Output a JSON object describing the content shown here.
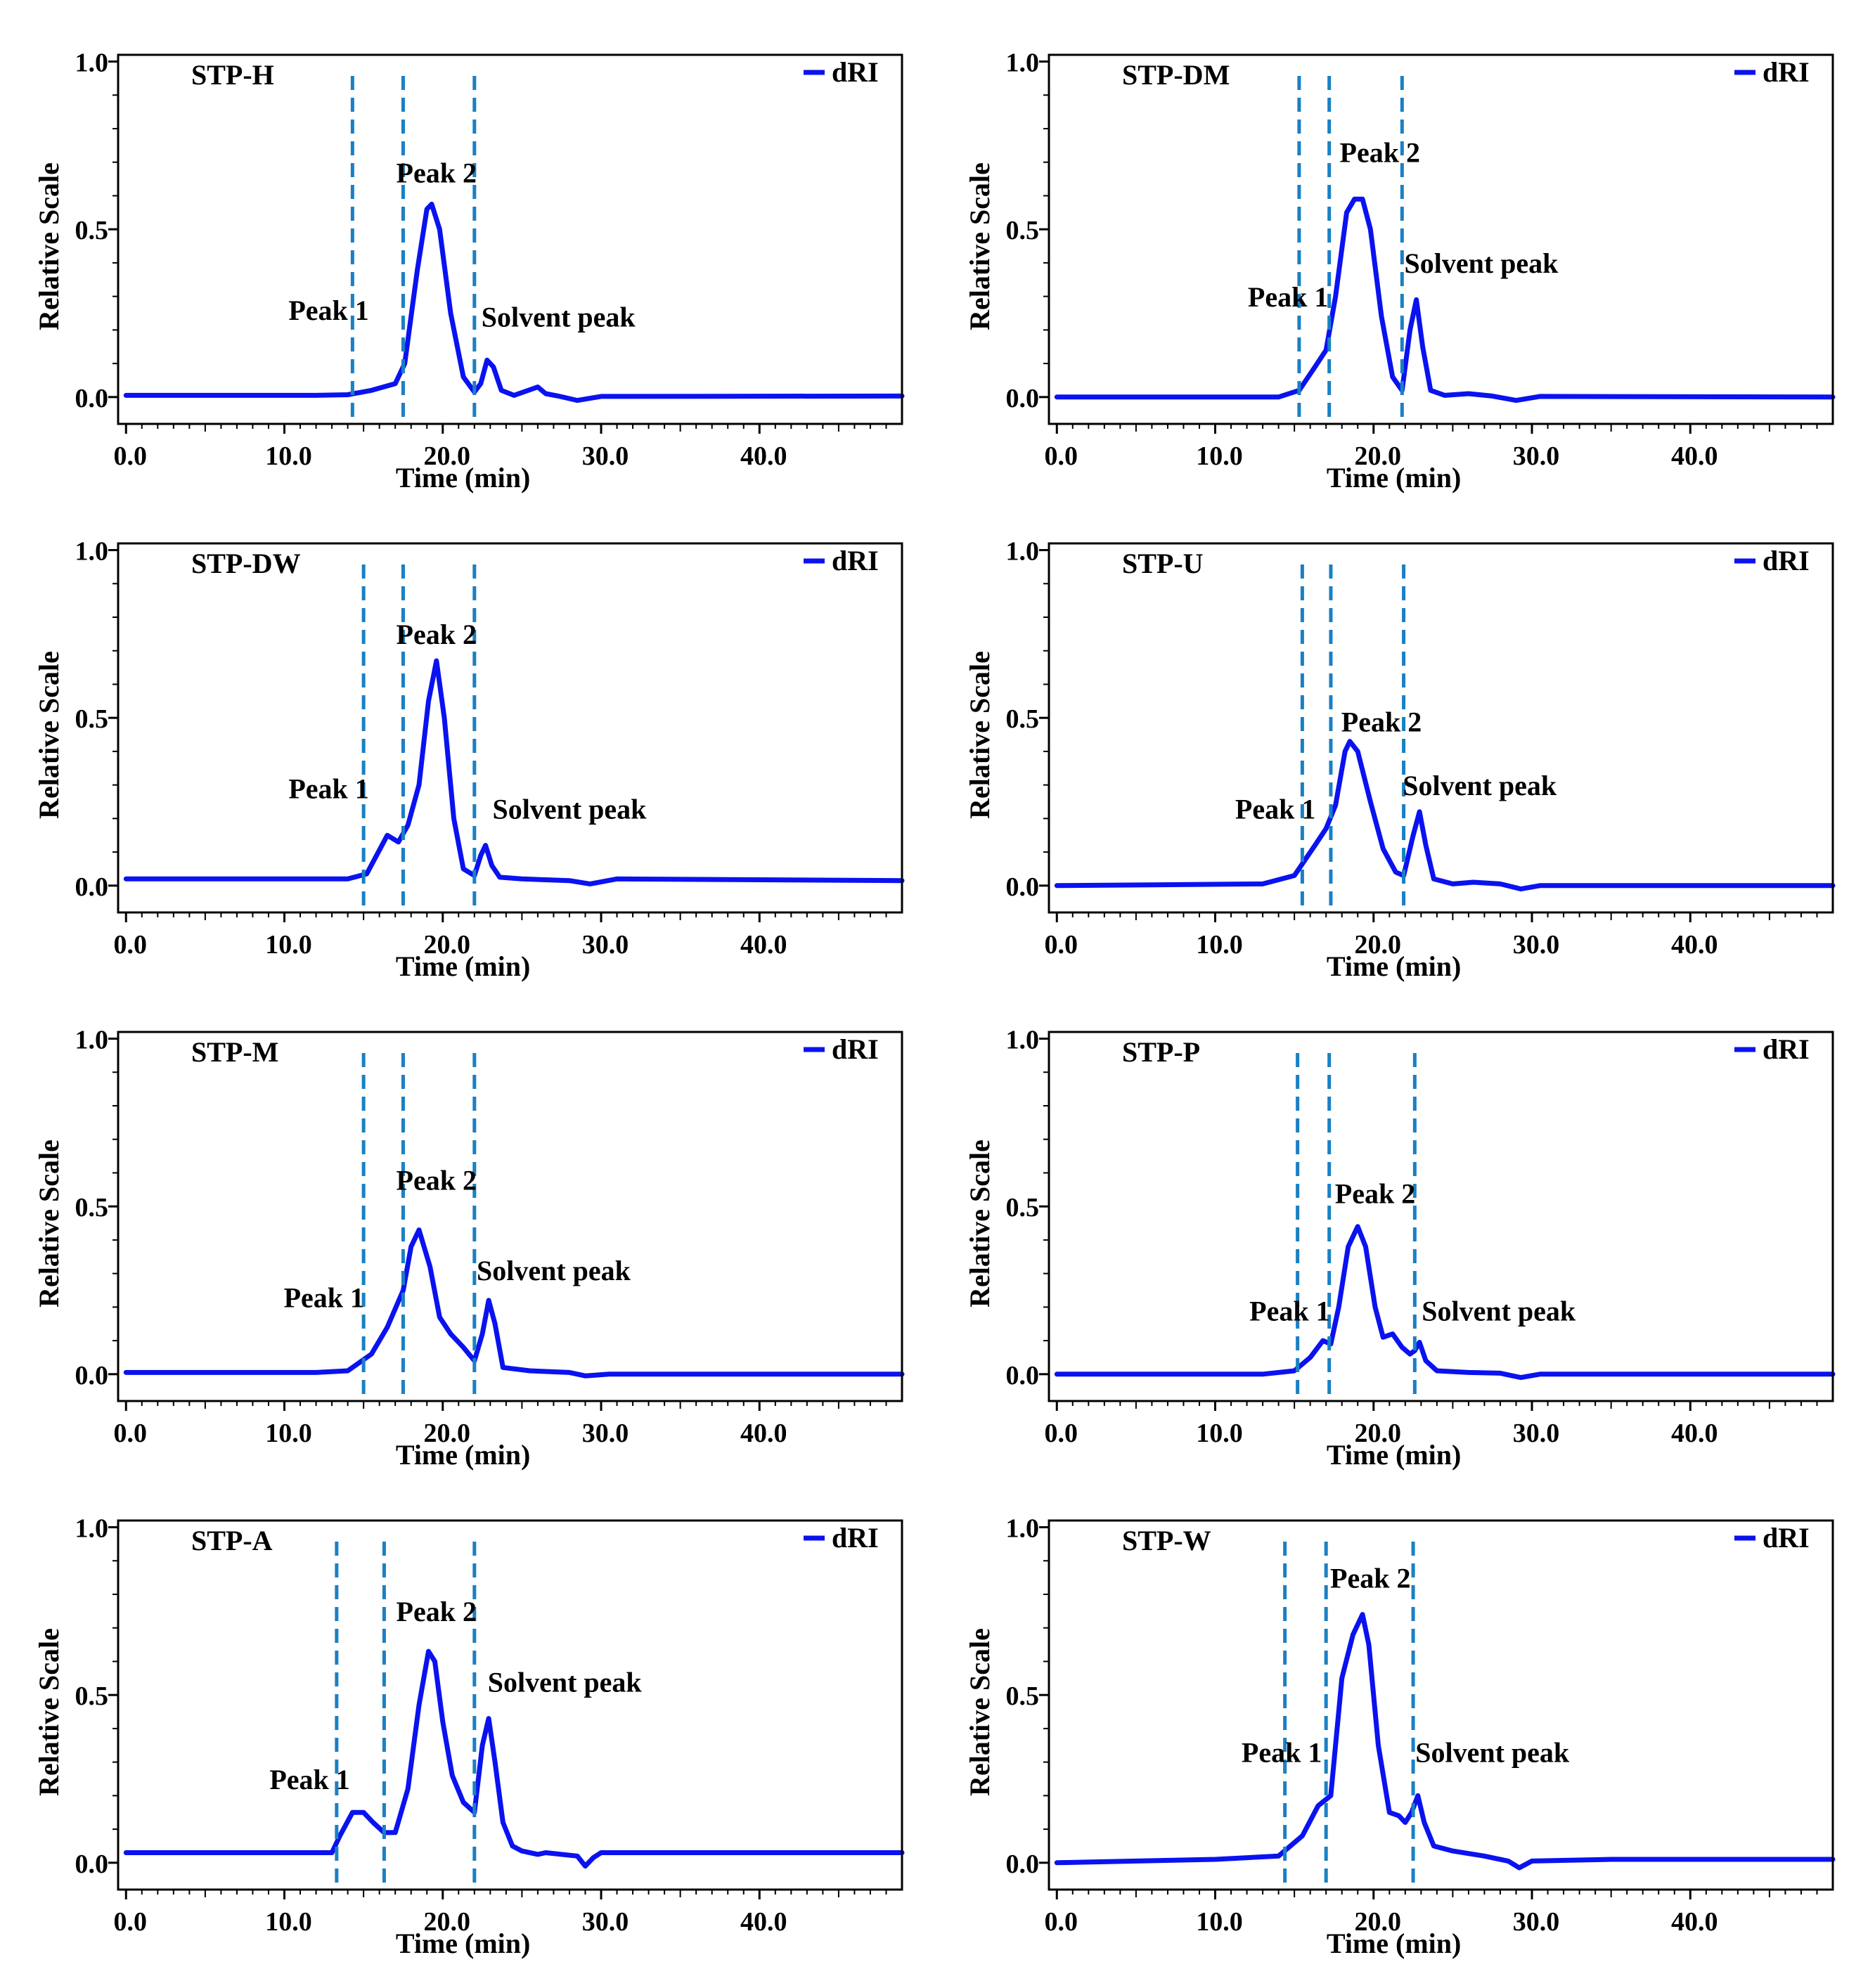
{
  "colors": {
    "signal": "#0a12f0",
    "marker": "#1a80c4",
    "axis": "#000000"
  },
  "chart_data": [
    {
      "type": "line",
      "title": "STP-H",
      "xlabel": "Time (min)",
      "ylabel": "Relative Scale",
      "xlim": [
        -0.5,
        49
      ],
      "ylim": [
        -0.08,
        1.02
      ],
      "xticks": [
        "0.0",
        "10.0",
        "20.0",
        "30.0",
        "40.0"
      ],
      "yticks": [
        "0.0",
        "0.5",
        "1.0"
      ],
      "legend": "dRI",
      "legend_position": "top-right",
      "dividers": [
        14.3,
        17.5,
        22.0
      ],
      "annotations": [
        {
          "text": "Peak 1",
          "x": 12.8,
          "y": 0.23
        },
        {
          "text": "Peak 2",
          "x": 19.6,
          "y": 0.64
        },
        {
          "text": "Solvent peak",
          "x": 27.3,
          "y": 0.21
        }
      ],
      "series": [
        {
          "name": "dRI",
          "x": [
            0,
            12,
            14,
            15.5,
            17,
            17.6,
            18.4,
            19,
            19.3,
            19.8,
            20.5,
            21.3,
            22,
            22.4,
            22.8,
            23.2,
            23.7,
            24.5,
            26,
            26.5,
            27.3,
            28.5,
            30,
            49
          ],
          "y": [
            0.005,
            0.005,
            0.007,
            0.02,
            0.04,
            0.1,
            0.38,
            0.56,
            0.575,
            0.5,
            0.25,
            0.06,
            0.015,
            0.04,
            0.11,
            0.09,
            0.02,
            0.005,
            0.03,
            0.01,
            0.003,
            -0.01,
            0.002,
            0.003
          ]
        }
      ]
    },
    {
      "type": "line",
      "title": "STP-DM",
      "xlabel": "Time (min)",
      "ylabel": "Relative Scale",
      "xlim": [
        -0.5,
        49
      ],
      "ylim": [
        -0.08,
        1.02
      ],
      "xticks": [
        "0.0",
        "10.0",
        "20.0",
        "30.0",
        "40.0"
      ],
      "yticks": [
        "0.0",
        "0.5",
        "1.0"
      ],
      "legend": "dRI",
      "legend_position": "top-right",
      "dividers": [
        15.3,
        17.2,
        21.8
      ],
      "annotations": [
        {
          "text": "Peak 1",
          "x": 14.6,
          "y": 0.27
        },
        {
          "text": "Peak 2",
          "x": 20.4,
          "y": 0.7
        },
        {
          "text": "Solvent peak",
          "x": 26.8,
          "y": 0.37
        }
      ],
      "series": [
        {
          "name": "dRI",
          "x": [
            0,
            14,
            15.3,
            16.3,
            17,
            17.6,
            18.3,
            18.8,
            19.3,
            19.8,
            20.5,
            21.2,
            21.8,
            22.3,
            22.7,
            23.1,
            23.6,
            24.5,
            26,
            27.5,
            29,
            30.5,
            49
          ],
          "y": [
            0.0,
            0.0,
            0.02,
            0.09,
            0.14,
            0.3,
            0.55,
            0.59,
            0.59,
            0.5,
            0.24,
            0.06,
            0.02,
            0.2,
            0.29,
            0.15,
            0.02,
            0.005,
            0.01,
            0.003,
            -0.01,
            0.002,
            0.0
          ]
        }
      ]
    },
    {
      "type": "line",
      "title": "STP-DW",
      "xlabel": "Time (min)",
      "ylabel": "Relative Scale",
      "xlim": [
        -0.5,
        49
      ],
      "ylim": [
        -0.08,
        1.02
      ],
      "xticks": [
        "0.0",
        "10.0",
        "20.0",
        "30.0",
        "40.0"
      ],
      "yticks": [
        "0.0",
        "0.5",
        "1.0"
      ],
      "legend": "dRI",
      "legend_position": "top-right",
      "dividers": [
        15.0,
        17.5,
        22.0
      ],
      "annotations": [
        {
          "text": "Peak 1",
          "x": 12.8,
          "y": 0.26
        },
        {
          "text": "Peak 2",
          "x": 19.6,
          "y": 0.72
        },
        {
          "text": "Solvent peak",
          "x": 28.0,
          "y": 0.2
        }
      ],
      "series": [
        {
          "name": "dRI",
          "x": [
            0,
            14,
            15.2,
            16.5,
            17.2,
            17.8,
            18.5,
            19.1,
            19.6,
            20.1,
            20.7,
            21.3,
            22,
            22.4,
            22.7,
            23.1,
            23.6,
            25,
            28,
            29.3,
            31,
            49
          ],
          "y": [
            0.02,
            0.02,
            0.035,
            0.15,
            0.13,
            0.18,
            0.3,
            0.55,
            0.67,
            0.5,
            0.2,
            0.05,
            0.03,
            0.09,
            0.12,
            0.06,
            0.025,
            0.02,
            0.015,
            0.005,
            0.02,
            0.015
          ]
        }
      ]
    },
    {
      "type": "line",
      "title": "STP-U",
      "xlabel": "Time (min)",
      "ylabel": "Relative Scale",
      "xlim": [
        -0.5,
        49
      ],
      "ylim": [
        -0.08,
        1.02
      ],
      "xticks": [
        "0.0",
        "10.0",
        "20.0",
        "30.0",
        "40.0"
      ],
      "yticks": [
        "0.0",
        "0.5",
        "1.0"
      ],
      "legend": "dRI",
      "legend_position": "top-right",
      "dividers": [
        15.5,
        17.3,
        21.9
      ],
      "annotations": [
        {
          "text": "Peak 1",
          "x": 13.8,
          "y": 0.2
        },
        {
          "text": "Peak 2",
          "x": 20.5,
          "y": 0.46
        },
        {
          "text": "Solvent peak",
          "x": 26.7,
          "y": 0.27
        }
      ],
      "series": [
        {
          "name": "dRI",
          "x": [
            0,
            13,
            15,
            16.3,
            17,
            17.6,
            18.2,
            18.5,
            19,
            19.8,
            20.6,
            21.4,
            21.9,
            22.5,
            22.9,
            23.3,
            23.8,
            25,
            26.3,
            28,
            29.3,
            30.5,
            49
          ],
          "y": [
            0.0,
            0.005,
            0.03,
            0.12,
            0.17,
            0.24,
            0.4,
            0.43,
            0.4,
            0.25,
            0.11,
            0.04,
            0.03,
            0.15,
            0.22,
            0.12,
            0.02,
            0.005,
            0.01,
            0.005,
            -0.01,
            0.0,
            0.0
          ]
        }
      ]
    },
    {
      "type": "line",
      "title": "STP-M",
      "xlabel": "Time (min)",
      "ylabel": "Relative Scale",
      "xlim": [
        -0.5,
        49
      ],
      "ylim": [
        -0.08,
        1.02
      ],
      "xticks": [
        "0.0",
        "10.0",
        "20.0",
        "30.0",
        "40.0"
      ],
      "yticks": [
        "0.0",
        "0.5",
        "1.0"
      ],
      "legend": "dRI",
      "legend_position": "top-right",
      "dividers": [
        15.0,
        17.5,
        22.0
      ],
      "annotations": [
        {
          "text": "Peak 1",
          "x": 12.5,
          "y": 0.2
        },
        {
          "text": "Peak 2",
          "x": 19.6,
          "y": 0.55
        },
        {
          "text": "Solvent peak",
          "x": 27.0,
          "y": 0.28
        }
      ],
      "series": [
        {
          "name": "dRI",
          "x": [
            0,
            12,
            14,
            15.5,
            16.5,
            17.5,
            18,
            18.5,
            19.2,
            19.8,
            20.5,
            21.3,
            22,
            22.5,
            22.9,
            23.3,
            23.8,
            25.5,
            28,
            29,
            30.5,
            49
          ],
          "y": [
            0.005,
            0.005,
            0.01,
            0.06,
            0.14,
            0.25,
            0.38,
            0.43,
            0.32,
            0.17,
            0.12,
            0.08,
            0.04,
            0.12,
            0.22,
            0.15,
            0.02,
            0.01,
            0.005,
            -0.005,
            0.0,
            0.0
          ]
        }
      ]
    },
    {
      "type": "line",
      "title": "STP-P",
      "xlabel": "Time (min)",
      "ylabel": "Relative Scale",
      "xlim": [
        -0.5,
        49
      ],
      "ylim": [
        -0.08,
        1.02
      ],
      "xticks": [
        "0.0",
        "10.0",
        "20.0",
        "30.0",
        "40.0"
      ],
      "yticks": [
        "0.0",
        "0.5",
        "1.0"
      ],
      "legend": "dRI",
      "legend_position": "top-right",
      "dividers": [
        15.2,
        17.2,
        22.6
      ],
      "annotations": [
        {
          "text": "Peak 1",
          "x": 14.7,
          "y": 0.16
        },
        {
          "text": "Peak 2",
          "x": 20.1,
          "y": 0.51
        },
        {
          "text": "Solvent peak",
          "x": 27.9,
          "y": 0.16
        }
      ],
      "series": [
        {
          "name": "dRI",
          "x": [
            0,
            13,
            15,
            16,
            16.8,
            17.3,
            17.8,
            18.4,
            19,
            19.5,
            20.1,
            20.6,
            21.2,
            21.8,
            22.3,
            22.6,
            22.9,
            23.3,
            24,
            26,
            28,
            29.3,
            30.5,
            49
          ],
          "y": [
            0.0,
            0.0,
            0.01,
            0.05,
            0.1,
            0.09,
            0.2,
            0.38,
            0.44,
            0.38,
            0.2,
            0.11,
            0.12,
            0.08,
            0.06,
            0.07,
            0.095,
            0.04,
            0.01,
            0.005,
            0.003,
            -0.01,
            0.0,
            0.0
          ]
        }
      ]
    },
    {
      "type": "line",
      "title": "STP-A",
      "xlabel": "Time (min)",
      "ylabel": "Relative Scale",
      "xlim": [
        -0.5,
        49
      ],
      "ylim": [
        -0.08,
        1.02
      ],
      "xticks": [
        "0.0",
        "10.0",
        "20.0",
        "30.0",
        "40.0"
      ],
      "yticks": [
        "0.0",
        "0.5",
        "1.0"
      ],
      "legend": "dRI",
      "legend_position": "top-right",
      "dividers": [
        13.3,
        16.3,
        22.0
      ],
      "annotations": [
        {
          "text": "Peak 1",
          "x": 11.6,
          "y": 0.22
        },
        {
          "text": "Peak 2",
          "x": 19.6,
          "y": 0.72
        },
        {
          "text": "Solvent peak",
          "x": 27.7,
          "y": 0.51
        }
      ],
      "series": [
        {
          "name": "dRI",
          "x": [
            0,
            13,
            13.5,
            14.3,
            15,
            15.6,
            16.3,
            17,
            17.8,
            18.5,
            19.1,
            19.5,
            20,
            20.6,
            21.3,
            22,
            22.5,
            22.9,
            23.3,
            23.8,
            24.4,
            25,
            26,
            26.5,
            28.5,
            29,
            29.5,
            30,
            49
          ],
          "y": [
            0.03,
            0.03,
            0.08,
            0.15,
            0.15,
            0.12,
            0.09,
            0.09,
            0.22,
            0.47,
            0.63,
            0.6,
            0.42,
            0.26,
            0.18,
            0.15,
            0.35,
            0.43,
            0.3,
            0.12,
            0.05,
            0.035,
            0.025,
            0.03,
            0.02,
            -0.01,
            0.015,
            0.03,
            0.03
          ]
        }
      ]
    },
    {
      "type": "line",
      "title": "STP-W",
      "xlabel": "Time (min)",
      "ylabel": "Relative Scale",
      "xlim": [
        -0.5,
        49
      ],
      "ylim": [
        -0.08,
        1.02
      ],
      "xticks": [
        "0.0",
        "10.0",
        "20.0",
        "30.0",
        "40.0"
      ],
      "yticks": [
        "0.0",
        "0.5",
        "1.0"
      ],
      "legend": "dRI",
      "legend_position": "top-right",
      "dividers": [
        14.4,
        17.0,
        22.5
      ],
      "annotations": [
        {
          "text": "Peak 1",
          "x": 14.2,
          "y": 0.3
        },
        {
          "text": "Peak 2",
          "x": 19.8,
          "y": 0.82
        },
        {
          "text": "Solvent peak",
          "x": 27.5,
          "y": 0.3
        }
      ],
      "series": [
        {
          "name": "dRI",
          "x": [
            0,
            5,
            10,
            14,
            15.5,
            16.5,
            17.3,
            18,
            18.7,
            19.3,
            19.7,
            20.3,
            21,
            21.6,
            22,
            22.4,
            22.8,
            23.2,
            23.8,
            25,
            27,
            28.5,
            29.2,
            30,
            35,
            49
          ],
          "y": [
            0.0,
            0.005,
            0.01,
            0.02,
            0.08,
            0.17,
            0.2,
            0.55,
            0.68,
            0.74,
            0.65,
            0.35,
            0.15,
            0.14,
            0.12,
            0.15,
            0.2,
            0.12,
            0.05,
            0.035,
            0.02,
            0.005,
            -0.015,
            0.005,
            0.01,
            0.01
          ]
        }
      ]
    }
  ]
}
